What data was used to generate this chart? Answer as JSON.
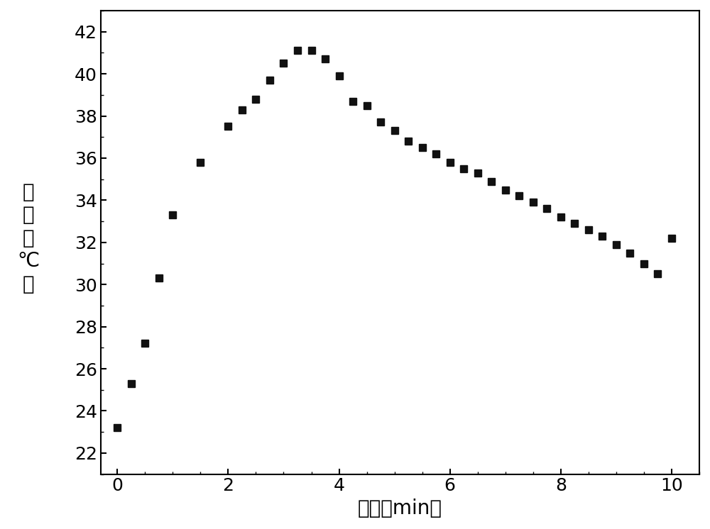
{
  "x": [
    0,
    0.25,
    0.5,
    0.75,
    1.0,
    1.5,
    2.0,
    2.25,
    2.5,
    2.75,
    3.0,
    3.25,
    3.5,
    3.75,
    4.0,
    4.25,
    4.5,
    4.75,
    5.0,
    5.25,
    5.5,
    5.75,
    6.0,
    6.25,
    6.5,
    6.75,
    7.0,
    7.25,
    7.5,
    7.75,
    8.0,
    8.25,
    8.5,
    8.75,
    9.0,
    9.25,
    9.5,
    9.75,
    10.0
  ],
  "y": [
    23.2,
    25.3,
    27.2,
    30.3,
    33.3,
    35.8,
    37.5,
    38.3,
    38.8,
    39.7,
    40.5,
    41.1,
    41.1,
    40.7,
    39.9,
    38.7,
    38.5,
    37.7,
    37.3,
    36.8,
    36.5,
    36.2,
    35.8,
    35.5,
    35.3,
    34.9,
    34.5,
    34.2,
    33.9,
    33.6,
    33.2,
    32.9,
    32.6,
    32.3,
    31.9,
    31.5,
    31.0,
    30.5,
    32.2
  ],
  "marker": "s",
  "marker_color": "#111111",
  "marker_size": 7,
  "xlim": [
    -0.3,
    10.5
  ],
  "ylim": [
    21.0,
    43.0
  ],
  "xticks": [
    0,
    2,
    4,
    6,
    8,
    10
  ],
  "yticks": [
    22,
    24,
    26,
    28,
    30,
    32,
    34,
    36,
    38,
    40,
    42
  ],
  "xlabel": "时间（min）",
  "ylabel_line1": "温",
  "ylabel_line2": "度",
  "ylabel_line3": "（",
  "ylabel_line4": "℃",
  "ylabel_line5": "）",
  "xlabel_fontsize": 20,
  "ylabel_fontsize": 20,
  "tick_fontsize": 18,
  "background_color": "#ffffff",
  "figure_bg": "#ffffff"
}
